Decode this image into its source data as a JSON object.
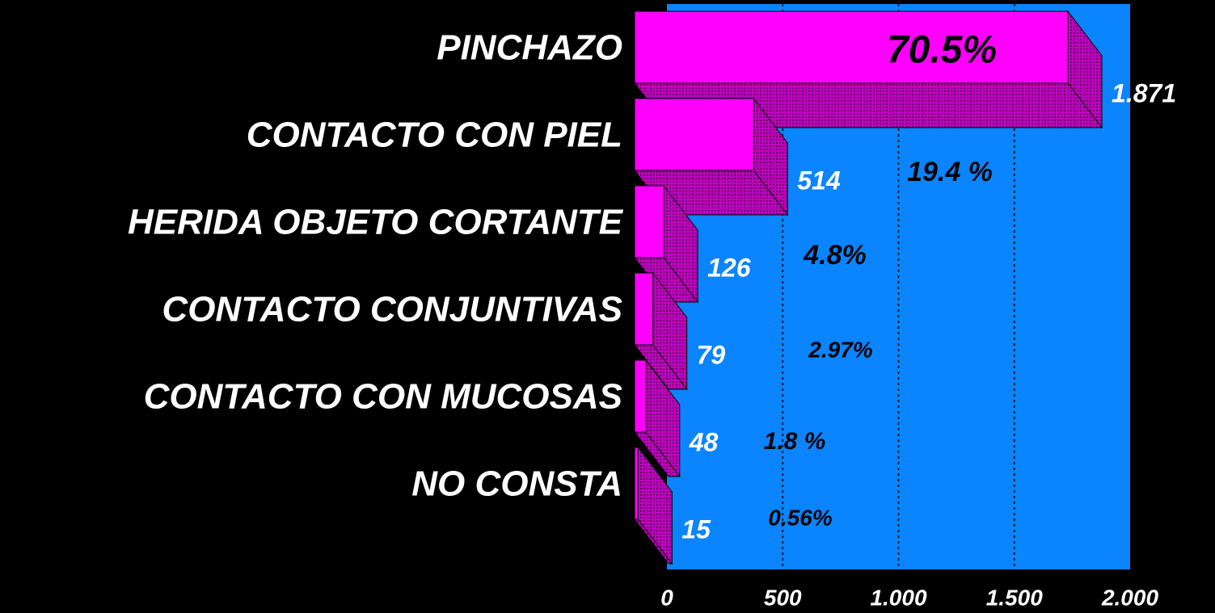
{
  "chart_data": {
    "type": "bar3d_horizontal",
    "categories": [
      "PINCHAZO",
      "CONTACTO CON PIEL",
      "HERIDA OBJETO CORTANTE",
      "CONTACTO CONJUNTIVAS",
      "CONTACTO CON MUCOSAS",
      "NO CONSTA"
    ],
    "values": [
      1871,
      514,
      126,
      79,
      48,
      15
    ],
    "value_labels": [
      "1.871",
      "514",
      "126",
      "79",
      "48",
      "15"
    ],
    "percent_labels": [
      "70.5%",
      "19.4 %",
      "4.8%",
      "2.97%",
      "1.8 %",
      "0.56%"
    ],
    "color": "#ff00ff",
    "xlim": [
      0,
      2000
    ],
    "xticks": [
      0,
      500,
      {
        "value": 1000,
        "label": "1.000"
      },
      {
        "value": 1500,
        "label": "1.500"
      },
      {
        "value": 2000,
        "label": "2.000"
      }
    ],
    "grid": true
  }
}
